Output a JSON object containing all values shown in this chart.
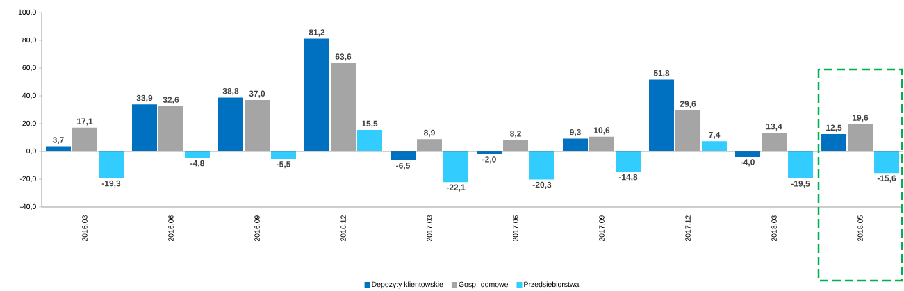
{
  "chart_data": {
    "type": "bar",
    "categories": [
      "2016.03",
      "2016.06",
      "2016.09",
      "2016.12",
      "2017.03",
      "2017.06",
      "2017.09",
      "2017.12",
      "2018.03",
      "2018.05"
    ],
    "series": [
      {
        "name": "Depozyty klientowskie",
        "color": "#0070c0",
        "values": [
          3.7,
          33.9,
          38.8,
          81.2,
          -6.5,
          -2.0,
          9.3,
          51.8,
          -4.0,
          12.5
        ],
        "value_labels": [
          "3,7",
          "33,9",
          "38,8",
          "81,2",
          "-6,5",
          "-2,0",
          "9,3",
          "51,8",
          "-4,0",
          "12,5"
        ]
      },
      {
        "name": "Gosp. domowe",
        "color": "#a5a5a5",
        "values": [
          17.1,
          32.6,
          37.0,
          63.6,
          8.9,
          8.2,
          10.6,
          29.6,
          13.4,
          19.6
        ],
        "value_labels": [
          "17,1",
          "32,6",
          "37,0",
          "63,6",
          "8,9",
          "8,2",
          "10,6",
          "29,6",
          "13,4",
          "19,6"
        ]
      },
      {
        "name": "Przedsiębiorstwa",
        "color": "#33ccff",
        "values": [
          -19.3,
          -4.8,
          -5.5,
          15.5,
          -22.1,
          -20.3,
          -14.8,
          7.4,
          -19.5,
          -15.6
        ],
        "value_labels": [
          "-19,3",
          "-4,8",
          "-5,5",
          "15,5",
          "-22,1",
          "-20,3",
          "-14,8",
          "7,4",
          "-19,5",
          "-15,6"
        ]
      }
    ],
    "ylim": [
      -40,
      100
    ],
    "yticks": [
      {
        "value": -40,
        "label": "-40,0"
      },
      {
        "value": -20,
        "label": "-20,0"
      },
      {
        "value": 0,
        "label": "0,0"
      },
      {
        "value": 20,
        "label": "20,0"
      },
      {
        "value": 40,
        "label": "40,0"
      },
      {
        "value": 60,
        "label": "60,0"
      },
      {
        "value": 80,
        "label": "80,0"
      },
      {
        "value": 100,
        "label": "100,0"
      }
    ],
    "legend": "bottom"
  }
}
